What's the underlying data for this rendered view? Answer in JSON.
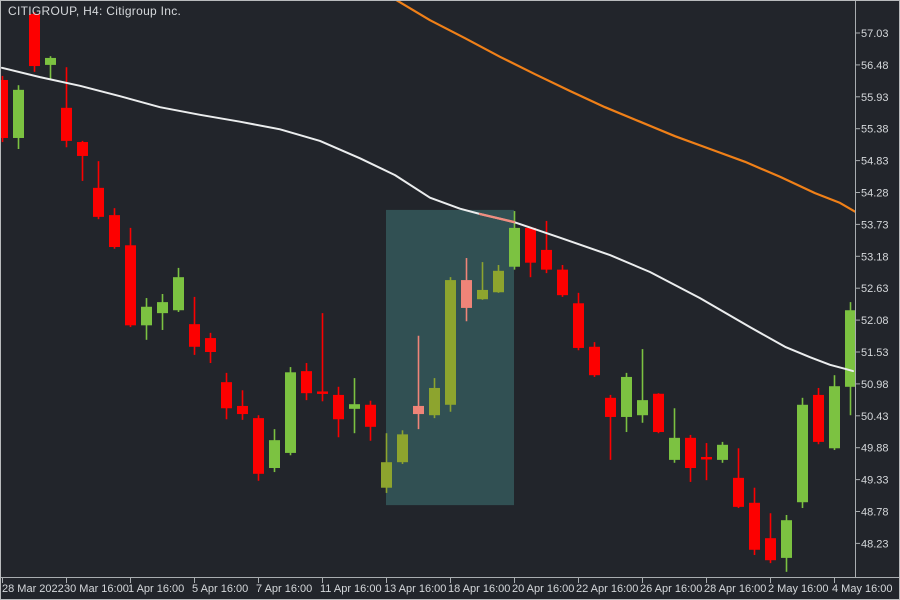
{
  "title": "CITIGROUP, H4:  Citigroup Inc.",
  "chart_data": {
    "type": "candlestick",
    "symbol": "CITIGROUP",
    "timeframe": "H4",
    "company": "Citigroup Inc.",
    "price_axis": {
      "labels": [
        57.03,
        56.48,
        55.93,
        55.38,
        54.83,
        54.28,
        53.73,
        53.18,
        52.63,
        52.08,
        51.53,
        50.98,
        50.43,
        49.88,
        49.33,
        48.78,
        48.23
      ],
      "max": 57.03,
      "min": 48.23,
      "step": 0.55
    },
    "time_axis": {
      "ticks": [
        {
          "i": 0,
          "label": "28 Mar 2022"
        },
        {
          "i": 4,
          "label": "30 Mar 16:00"
        },
        {
          "i": 8,
          "label": "1 Apr 16:00"
        },
        {
          "i": 12,
          "label": "5 Apr 16:00"
        },
        {
          "i": 16,
          "label": "7 Apr 16:00"
        },
        {
          "i": 20,
          "label": "11 Apr 16:00"
        },
        {
          "i": 24,
          "label": "13 Apr 16:00"
        },
        {
          "i": 28,
          "label": "18 Apr 16:00"
        },
        {
          "i": 32,
          "label": "20 Apr 16:00"
        },
        {
          "i": 36,
          "label": "22 Apr 16:00"
        },
        {
          "i": 40,
          "label": "26 Apr 16:00"
        },
        {
          "i": 44,
          "label": "28 Apr 16:00"
        },
        {
          "i": 48,
          "label": "2 May 16:00"
        },
        {
          "i": 52,
          "label": "4 May 16:00"
        }
      ]
    },
    "candles_ohlc": [
      [
        56.22,
        56.29,
        55.15,
        55.22
      ],
      [
        55.22,
        56.13,
        55.03,
        56.05
      ],
      [
        57.36,
        57.39,
        56.36,
        56.46
      ],
      [
        56.48,
        56.63,
        56.22,
        56.6
      ],
      [
        55.74,
        56.44,
        55.06,
        55.17
      ],
      [
        55.15,
        55.17,
        54.48,
        54.91
      ],
      [
        54.36,
        54.82,
        53.82,
        53.86
      ],
      [
        53.89,
        54.01,
        53.31,
        53.34
      ],
      [
        53.37,
        53.67,
        51.96,
        51.99
      ],
      [
        51.99,
        52.46,
        51.74,
        52.31
      ],
      [
        52.2,
        52.53,
        51.91,
        52.39
      ],
      [
        52.25,
        52.98,
        52.22,
        52.82
      ],
      [
        52.01,
        52.48,
        51.48,
        51.62
      ],
      [
        51.77,
        51.86,
        51.34,
        51.53
      ],
      [
        51.01,
        51.17,
        50.37,
        50.56
      ],
      [
        50.6,
        50.87,
        50.36,
        50.46
      ],
      [
        50.39,
        50.44,
        49.31,
        49.43
      ],
      [
        49.53,
        50.2,
        49.46,
        50.01
      ],
      [
        49.79,
        51.27,
        49.75,
        51.18
      ],
      [
        51.2,
        51.34,
        50.7,
        50.82
      ],
      [
        50.85,
        52.2,
        50.68,
        50.81
      ],
      [
        50.79,
        50.93,
        50.06,
        50.37
      ],
      [
        50.55,
        51.08,
        50.13,
        50.63
      ],
      [
        50.62,
        50.69,
        50.0,
        50.24
      ],
      [
        49.19,
        50.13,
        49.1,
        49.63
      ],
      [
        49.63,
        50.18,
        49.6,
        50.11
      ],
      [
        50.6,
        51.81,
        50.2,
        50.46
      ],
      [
        50.44,
        51.08,
        50.39,
        50.91
      ],
      [
        50.62,
        52.82,
        50.5,
        52.77
      ],
      [
        52.77,
        53.15,
        52.06,
        52.29
      ],
      [
        52.44,
        53.08,
        52.43,
        52.6
      ],
      [
        52.56,
        53.03,
        52.55,
        52.93
      ],
      [
        53.0,
        53.96,
        52.95,
        53.67
      ],
      [
        53.67,
        53.69,
        52.82,
        53.07
      ],
      [
        53.29,
        53.79,
        52.89,
        52.95
      ],
      [
        52.95,
        53.03,
        52.48,
        52.51
      ],
      [
        52.37,
        52.55,
        51.56,
        51.6
      ],
      [
        51.62,
        51.7,
        51.1,
        51.13
      ],
      [
        50.74,
        50.79,
        49.67,
        50.41
      ],
      [
        50.41,
        51.17,
        50.15,
        51.1
      ],
      [
        50.44,
        51.58,
        50.31,
        50.7
      ],
      [
        50.81,
        50.82,
        50.13,
        50.15
      ],
      [
        49.67,
        50.56,
        49.62,
        50.05
      ],
      [
        50.05,
        50.1,
        49.29,
        49.53
      ],
      [
        49.72,
        49.96,
        49.32,
        49.69
      ],
      [
        49.67,
        49.98,
        49.62,
        49.93
      ],
      [
        49.36,
        49.87,
        48.84,
        48.86
      ],
      [
        48.93,
        49.19,
        48.03,
        48.12
      ],
      [
        48.32,
        48.75,
        47.89,
        47.94
      ],
      [
        47.98,
        48.72,
        47.74,
        48.63
      ],
      [
        48.94,
        50.74,
        48.84,
        50.62
      ],
      [
        50.79,
        50.91,
        49.94,
        49.98
      ],
      [
        49.87,
        51.13,
        49.84,
        50.94
      ],
      [
        50.93,
        52.39,
        50.44,
        52.25
      ]
    ],
    "highlight_zone": {
      "start_index": 24,
      "end_index": 31,
      "price_top": 53.98,
      "price_bottom": 48.89
    },
    "ma_fast_white": [
      [
        2,
        56.43
      ],
      [
        40,
        56.27
      ],
      [
        80,
        56.12
      ],
      [
        120,
        55.94
      ],
      [
        160,
        55.75
      ],
      [
        200,
        55.62
      ],
      [
        240,
        55.5
      ],
      [
        280,
        55.37
      ],
      [
        320,
        55.17
      ],
      [
        360,
        54.87
      ],
      [
        395,
        54.58
      ],
      [
        430,
        54.19
      ],
      [
        460,
        54.0
      ],
      [
        480,
        53.91
      ],
      [
        514,
        53.77
      ],
      [
        560,
        53.5
      ],
      [
        610,
        53.2
      ],
      [
        650,
        52.91
      ],
      [
        700,
        52.46
      ],
      [
        750,
        51.96
      ],
      [
        785,
        51.62
      ],
      [
        810,
        51.44
      ],
      [
        830,
        51.31
      ],
      [
        845,
        51.24
      ],
      [
        853,
        51.2
      ]
    ],
    "ma_fast_highlight_segment": [
      [
        480,
        53.91
      ],
      [
        497,
        53.84
      ],
      [
        514,
        53.77
      ]
    ],
    "ma_slow_orange": [
      [
        396,
        57.6
      ],
      [
        430,
        57.25
      ],
      [
        465,
        56.94
      ],
      [
        500,
        56.62
      ],
      [
        535,
        56.32
      ],
      [
        570,
        56.03
      ],
      [
        605,
        55.75
      ],
      [
        640,
        55.5
      ],
      [
        675,
        55.25
      ],
      [
        710,
        55.03
      ],
      [
        745,
        54.81
      ],
      [
        780,
        54.55
      ],
      [
        815,
        54.27
      ],
      [
        840,
        54.1
      ],
      [
        856,
        53.94
      ]
    ],
    "legend_position": "top-left",
    "grid": false
  },
  "colors": {
    "background": "#22252b",
    "bull": "#7cc241",
    "bear": "#fd0000",
    "bull_tint": "#8da42e",
    "bear_tint": "#ef8478",
    "ma_fast": "#ebedee",
    "ma_slow": "#f08018",
    "ma_highlight": "#ef8d80",
    "highlight_fill": "#315053",
    "axis_line": "#a9adb0",
    "text": "#d5d8db",
    "border": "#b9bbbd"
  }
}
